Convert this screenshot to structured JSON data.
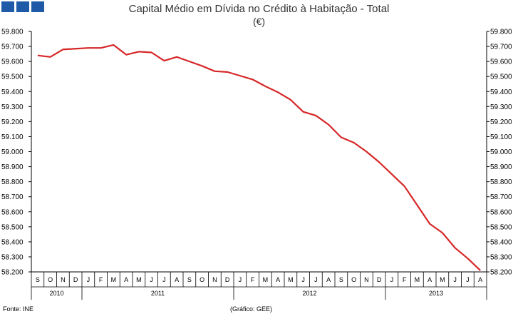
{
  "colors": {
    "line": "#d62728",
    "logo": "#1e5aa8"
  },
  "header": {
    "logo_icon": "logo-squares-icon"
  },
  "footer": {
    "source": "Fonte: INE",
    "credit": "(Gráfico: GEE)"
  },
  "chart_data": {
    "type": "line",
    "title": "Capital Médio em Dívida no Crédito à Habitação - Total",
    "subtitle": "(€)",
    "xlabel": "",
    "ylabel": "",
    "ylim": [
      58200,
      59800
    ],
    "yticks": [
      "59.800",
      "59.700",
      "59.600",
      "59.500",
      "59.400",
      "59.300",
      "59.200",
      "59.100",
      "59.000",
      "58.900",
      "58.800",
      "58.700",
      "58.600",
      "58.500",
      "58.400",
      "58.300",
      "58.200"
    ],
    "categories": [
      "S",
      "O",
      "N",
      "D",
      "J",
      "F",
      "M",
      "A",
      "M",
      "J",
      "J",
      "A",
      "S",
      "O",
      "N",
      "D",
      "J",
      "F",
      "M",
      "A",
      "M",
      "J",
      "J",
      "A",
      "S",
      "O",
      "N",
      "D",
      "J",
      "F",
      "M",
      "A",
      "M",
      "J",
      "J",
      "A"
    ],
    "years": [
      {
        "label": "2010",
        "span": 4
      },
      {
        "label": "2011",
        "span": 12
      },
      {
        "label": "2012",
        "span": 12
      },
      {
        "label": "2013",
        "span": 8
      }
    ],
    "series": [
      {
        "values": [
          59640,
          59630,
          59680,
          59685,
          59690,
          59690,
          59710,
          59645,
          59665,
          59660,
          59605,
          59630,
          59600,
          59570,
          59535,
          59530,
          59505,
          59480,
          59435,
          59395,
          59345,
          59265,
          59240,
          59180,
          59095,
          59060,
          59000,
          58930,
          58850,
          58770,
          58645,
          58520,
          58460,
          58360,
          58290,
          58210
        ]
      }
    ],
    "grid": false,
    "legend": "none"
  }
}
